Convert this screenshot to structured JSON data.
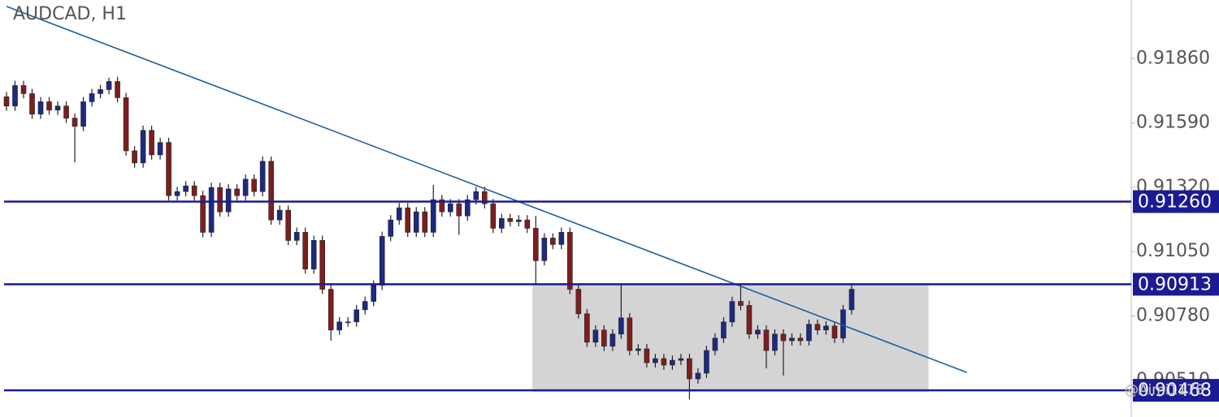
{
  "chart_data": {
    "type": "candlestick",
    "title": "AUDCAD, H1",
    "watermark": "@Aimi1178",
    "ylim": [
      0.90356,
      0.92106
    ],
    "yticks": [
      {
        "value": 0.9186,
        "label": "0.91860"
      },
      {
        "value": 0.9159,
        "label": "0.91590"
      },
      {
        "value": 0.9132,
        "label": "0.91320"
      },
      {
        "value": 0.9105,
        "label": "0.91050"
      },
      {
        "value": 0.9078,
        "label": "0.90780"
      },
      {
        "value": 0.9051,
        "label": "0.90510"
      }
    ],
    "levels": [
      {
        "value": 0.9126,
        "label": "0.91260"
      },
      {
        "value": 0.90913,
        "label": "0.90913"
      },
      {
        "value": 0.90468,
        "label": "0.90468"
      }
    ],
    "level_color": "#1b1b94",
    "trendline": {
      "x": [
        0,
        112.5
      ],
      "y": [
        0.92079,
        0.90543
      ],
      "color": "#1f5f9c"
    },
    "zone": {
      "x": [
        61.6,
        108
      ],
      "y": [
        0.90462,
        0.90913
      ],
      "color": "#d4d4d4"
    },
    "up_color": "#1c2a80",
    "down_color": "#7e1d1d",
    "open": [
      0.917,
      0.91661,
      0.91747,
      0.91713,
      0.91627,
      0.91679,
      0.91644,
      0.91661,
      0.9161,
      0.91576,
      0.91679,
      0.91713,
      0.9173,
      0.91764,
      0.91696,
      0.91473,
      0.91422,
      0.91559,
      0.91456,
      0.91508,
      0.91285,
      0.91302,
      0.91326,
      0.91285,
      0.91131,
      0.91319,
      0.91217,
      0.91313,
      0.91285,
      0.91354,
      0.91302,
      0.91429,
      0.91183,
      0.91224,
      0.91097,
      0.91131,
      0.90977,
      0.91097,
      0.90892,
      0.90721,
      0.90755,
      0.90755,
      0.90806,
      0.90841,
      0.90909,
      0.91114,
      0.91183,
      0.91234,
      0.91131,
      0.91217,
      0.91131,
      0.91268,
      0.91217,
      0.91251,
      0.912,
      0.91268,
      0.91302,
      0.91251,
      0.91148,
      0.91189,
      0.91176,
      0.91183,
      0.91148,
      0.91012,
      0.91107,
      0.9108,
      0.91131,
      0.90892,
      0.90789,
      0.9067,
      0.90721,
      0.90653,
      0.90704,
      0.90772,
      0.90635,
      0.90642,
      0.90584,
      0.90601,
      0.90574,
      0.90594,
      0.90601,
      0.90516,
      0.9054,
      0.90635,
      0.90687,
      0.90755,
      0.90841,
      0.90824,
      0.90704,
      0.90721,
      0.90635,
      0.90704,
      0.90676,
      0.90687,
      0.90676,
      0.90745,
      0.90721,
      0.90738,
      0.90687,
      0.90806
    ],
    "high": [
      0.9172,
      0.91767,
      0.91767,
      0.91733,
      0.91699,
      0.91699,
      0.91681,
      0.91681,
      0.9163,
      0.91699,
      0.91733,
      0.9175,
      0.9178,
      0.91784,
      0.91716,
      0.91493,
      0.91579,
      0.91579,
      0.91528,
      0.91528,
      0.91322,
      0.91346,
      0.91346,
      0.91305,
      0.91339,
      0.91339,
      0.91333,
      0.91333,
      0.91374,
      0.91374,
      0.9145,
      0.91449,
      0.91244,
      0.91244,
      0.91151,
      0.91151,
      0.91117,
      0.91117,
      0.90912,
      0.90775,
      0.90775,
      0.90826,
      0.90861,
      0.90929,
      0.91134,
      0.91203,
      0.91254,
      0.91254,
      0.91237,
      0.91237,
      0.9133,
      0.91288,
      0.91271,
      0.91271,
      0.91288,
      0.91322,
      0.91322,
      0.91271,
      0.91209,
      0.91209,
      0.91203,
      0.91203,
      0.912,
      0.91127,
      0.91127,
      0.91151,
      0.91151,
      0.90912,
      0.90809,
      0.90741,
      0.90741,
      0.90724,
      0.90913,
      0.90792,
      0.90662,
      0.90662,
      0.90621,
      0.90621,
      0.90614,
      0.90621,
      0.90621,
      0.9056,
      0.90655,
      0.90707,
      0.90775,
      0.90861,
      0.90913,
      0.90844,
      0.90741,
      0.90741,
      0.90724,
      0.90724,
      0.90707,
      0.90707,
      0.90765,
      0.90765,
      0.90758,
      0.90758,
      0.90826,
      0.90916
    ],
    "low": [
      0.91641,
      0.91641,
      0.91693,
      0.91607,
      0.91607,
      0.91624,
      0.91624,
      0.9159,
      0.91425,
      0.91556,
      0.91659,
      0.91693,
      0.9171,
      0.91676,
      0.91453,
      0.91402,
      0.91402,
      0.91436,
      0.91436,
      0.91265,
      0.91265,
      0.91282,
      0.91265,
      0.91111,
      0.91111,
      0.91197,
      0.91197,
      0.91265,
      0.91265,
      0.91282,
      0.91282,
      0.91163,
      0.91163,
      0.91077,
      0.91077,
      0.90957,
      0.90957,
      0.90872,
      0.90676,
      0.90701,
      0.90735,
      0.90735,
      0.90786,
      0.90821,
      0.90889,
      0.91094,
      0.91163,
      0.91111,
      0.91111,
      0.91111,
      0.91111,
      0.91197,
      0.91197,
      0.9112,
      0.9118,
      0.91248,
      0.91231,
      0.91128,
      0.91128,
      0.91156,
      0.91156,
      0.91128,
      0.90913,
      0.90992,
      0.9106,
      0.9106,
      0.90872,
      0.90769,
      0.9065,
      0.9065,
      0.90633,
      0.90633,
      0.90684,
      0.90615,
      0.90615,
      0.90564,
      0.90564,
      0.90554,
      0.90554,
      0.90574,
      0.9043,
      0.90496,
      0.9052,
      0.90615,
      0.90667,
      0.90735,
      0.90804,
      0.90684,
      0.90684,
      0.9056,
      0.90615,
      0.9053,
      0.90656,
      0.90656,
      0.90656,
      0.90701,
      0.90701,
      0.90667,
      0.90667,
      0.90786
    ],
    "close": [
      0.91661,
      0.91747,
      0.91713,
      0.91627,
      0.91679,
      0.91644,
      0.91661,
      0.9161,
      0.91576,
      0.91679,
      0.91713,
      0.9173,
      0.91764,
      0.91696,
      0.91473,
      0.91422,
      0.91559,
      0.91456,
      0.91508,
      0.91285,
      0.91302,
      0.91326,
      0.91285,
      0.91131,
      0.91319,
      0.91217,
      0.91313,
      0.91285,
      0.91354,
      0.91302,
      0.91429,
      0.91183,
      0.91224,
      0.91097,
      0.91131,
      0.90977,
      0.91097,
      0.90892,
      0.90721,
      0.90755,
      0.90755,
      0.90806,
      0.90841,
      0.90909,
      0.91114,
      0.91183,
      0.91234,
      0.91131,
      0.91217,
      0.91131,
      0.91268,
      0.91217,
      0.91251,
      0.912,
      0.91268,
      0.91302,
      0.91251,
      0.91148,
      0.91189,
      0.91176,
      0.91183,
      0.91148,
      0.91012,
      0.91107,
      0.9108,
      0.91131,
      0.90892,
      0.90789,
      0.9067,
      0.90721,
      0.90653,
      0.90704,
      0.90772,
      0.90635,
      0.90642,
      0.90584,
      0.90601,
      0.90574,
      0.90594,
      0.90601,
      0.90516,
      0.9054,
      0.90635,
      0.90687,
      0.90755,
      0.90841,
      0.90824,
      0.90704,
      0.90721,
      0.90635,
      0.90704,
      0.90676,
      0.90687,
      0.90676,
      0.90745,
      0.90721,
      0.90738,
      0.90687,
      0.90806,
      0.90892
    ]
  }
}
